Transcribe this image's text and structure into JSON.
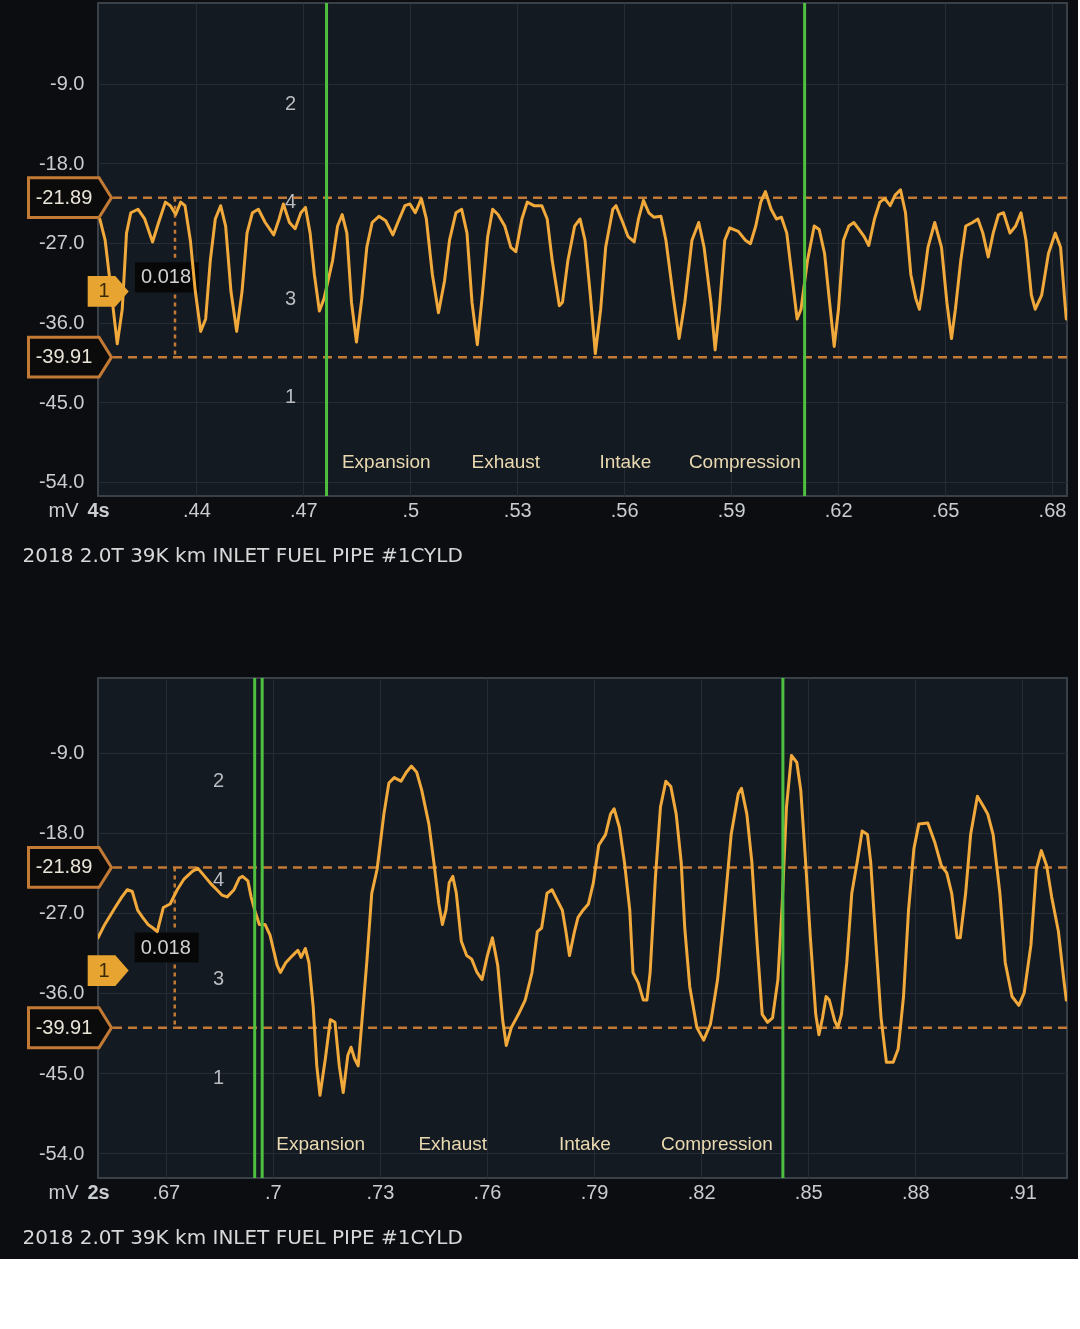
{
  "chart_data": [
    {
      "type": "line",
      "title": "2018 2.0T 39K km INLET FUEL PIPE #1CYLD",
      "xlabel": "4s",
      "ylabel": "mV",
      "xlim": [
        0.4124,
        0.6842
      ],
      "ylim": [
        -55.6,
        0.1
      ],
      "xticks": [
        {
          "value": 0.44,
          "label": ".44"
        },
        {
          "value": 0.47,
          "label": ".47"
        },
        {
          "value": 0.5,
          "label": ".5"
        },
        {
          "value": 0.53,
          "label": ".53"
        },
        {
          "value": 0.56,
          "label": ".56"
        },
        {
          "value": 0.59,
          "label": ".59"
        },
        {
          "value": 0.62,
          "label": ".62"
        },
        {
          "value": 0.65,
          "label": ".65"
        },
        {
          "value": 0.68,
          "label": ".68"
        }
      ],
      "yticks": [
        {
          "value": -9,
          "label": "-9.0"
        },
        {
          "value": -18,
          "label": "-18.0"
        },
        {
          "value": -27,
          "label": "-27.0"
        },
        {
          "value": -36,
          "label": "-36.0"
        },
        {
          "value": -45,
          "label": "-45.0"
        },
        {
          "value": -54,
          "label": "-54.0"
        }
      ],
      "grid": true,
      "ref_lines": [
        {
          "axis": "y",
          "value": -21.89,
          "label": "-21.89",
          "color": "#c27a35",
          "line_style": "dashed"
        },
        {
          "axis": "y",
          "value": -39.91,
          "label": "-39.91",
          "color": "#c27a35",
          "line_style": "dashed"
        },
        {
          "axis": "x",
          "value": 0.4765,
          "color": "#4fbf3f",
          "line_style": "solid"
        },
        {
          "axis": "x",
          "value": 0.6106,
          "color": "#4fbf3f",
          "line_style": "solid"
        }
      ],
      "annotations": [
        {
          "text": "0.018",
          "x": 0.434,
          "y": -39.91
        },
        "1",
        "2",
        "4",
        "3",
        "1",
        "Expansion",
        "Exhaust",
        "Intake",
        "Compression"
      ],
      "x": [
        0.4129,
        0.4144,
        0.4161,
        0.4178,
        0.4192,
        0.4204,
        0.4216,
        0.4236,
        0.4255,
        0.4277,
        0.4294,
        0.4313,
        0.4327,
        0.4342,
        0.4356,
        0.4368,
        0.4383,
        0.4397,
        0.4412,
        0.4426,
        0.4439,
        0.4453,
        0.4468,
        0.4482,
        0.4497,
        0.4513,
        0.4528,
        0.4542,
        0.4557,
        0.4574,
        0.4593,
        0.4617,
        0.4632,
        0.4644,
        0.4661,
        0.4677,
        0.4693,
        0.4706,
        0.4719,
        0.4731,
        0.4745,
        0.4758,
        0.4782,
        0.4796,
        0.4809,
        0.4822,
        0.4835,
        0.4849,
        0.4864,
        0.4878,
        0.4893,
        0.4912,
        0.4931,
        0.4951,
        0.4965,
        0.4985,
        0.4999,
        0.5014,
        0.5031,
        0.5045,
        0.5062,
        0.5079,
        0.5096,
        0.511,
        0.5128,
        0.5144,
        0.5159,
        0.5173,
        0.5188,
        0.5202,
        0.5217,
        0.5231,
        0.5246,
        0.5265,
        0.5282,
        0.5296,
        0.5313,
        0.5328,
        0.5347,
        0.5369,
        0.5384,
        0.5398,
        0.5418,
        0.5427,
        0.5442,
        0.5461,
        0.5476,
        0.549,
        0.5505,
        0.5519,
        0.5534,
        0.5548,
        0.5568,
        0.5577,
        0.5596,
        0.5611,
        0.5628,
        0.564,
        0.5654,
        0.5669,
        0.5683,
        0.5703,
        0.5717,
        0.5737,
        0.5754,
        0.577,
        0.579,
        0.5809,
        0.5824,
        0.5843,
        0.5855,
        0.5867,
        0.5882,
        0.5896,
        0.592,
        0.594,
        0.5954,
        0.5969,
        0.5983,
        0.5996,
        0.6012,
        0.6027,
        0.6041,
        0.6056,
        0.607,
        0.6085,
        0.6096,
        0.6114,
        0.6133,
        0.6147,
        0.6162,
        0.6176,
        0.6189,
        0.6201,
        0.6215,
        0.623,
        0.6244,
        0.6259,
        0.6273,
        0.6286,
        0.6302,
        0.6317,
        0.6331,
        0.6346,
        0.636,
        0.6375,
        0.6389,
        0.6404,
        0.6418,
        0.6428,
        0.6437,
        0.6452,
        0.6471,
        0.649,
        0.6505,
        0.6518,
        0.6529,
        0.6544,
        0.6558,
        0.6577,
        0.6592,
        0.6606,
        0.6621,
        0.6635,
        0.665,
        0.6664,
        0.6682,
        0.6698,
        0.6713,
        0.6727,
        0.6742,
        0.6753,
        0.6771,
        0.679,
        0.6809,
        0.6824,
        0.6836,
        0.684
      ],
      "series": [
        {
          "color": "#f0a93a",
          "values": [
            -24.3,
            -26.7,
            -32.5,
            -38.4,
            -34.5,
            -25.9,
            -23.6,
            -23.2,
            -24.3,
            -26.9,
            -24.7,
            -22.4,
            -22.8,
            -23.8,
            -22.4,
            -22.8,
            -26.7,
            -32.5,
            -37.0,
            -35.6,
            -29.0,
            -24.3,
            -22.8,
            -25.1,
            -32.5,
            -37.0,
            -32.5,
            -25.9,
            -23.6,
            -23.2,
            -24.7,
            -26.1,
            -24.3,
            -22.6,
            -24.7,
            -25.4,
            -23.6,
            -23.0,
            -25.9,
            -30.6,
            -34.7,
            -33.3,
            -29.0,
            -25.1,
            -23.8,
            -25.9,
            -33.7,
            -38.2,
            -33.3,
            -27.5,
            -24.7,
            -24.0,
            -24.5,
            -26.1,
            -24.7,
            -22.8,
            -22.6,
            -23.6,
            -22.0,
            -24.3,
            -30.6,
            -34.9,
            -31.3,
            -26.7,
            -23.6,
            -23.2,
            -25.9,
            -33.7,
            -38.5,
            -32.9,
            -26.3,
            -23.2,
            -23.8,
            -25.1,
            -27.5,
            -28.0,
            -24.3,
            -22.4,
            -22.8,
            -22.8,
            -24.3,
            -29.0,
            -34.1,
            -33.7,
            -29.0,
            -25.1,
            -24.3,
            -26.7,
            -32.9,
            -39.5,
            -34.5,
            -27.5,
            -23.2,
            -22.8,
            -24.7,
            -26.3,
            -26.9,
            -24.3,
            -22.2,
            -23.6,
            -24.1,
            -24.0,
            -26.7,
            -32.9,
            -37.8,
            -33.7,
            -26.7,
            -24.7,
            -27.5,
            -33.7,
            -39.1,
            -34.5,
            -26.7,
            -25.3,
            -25.7,
            -26.7,
            -27.1,
            -25.1,
            -22.4,
            -21.2,
            -23.2,
            -24.3,
            -24.1,
            -25.9,
            -30.6,
            -35.6,
            -34.5,
            -29.0,
            -25.1,
            -25.5,
            -28.2,
            -33.7,
            -38.7,
            -34.5,
            -26.7,
            -25.1,
            -24.7,
            -25.5,
            -26.3,
            -27.3,
            -24.3,
            -22.4,
            -22.0,
            -22.8,
            -21.6,
            -21.0,
            -23.6,
            -30.6,
            -33.3,
            -34.5,
            -32.1,
            -27.5,
            -24.7,
            -27.5,
            -33.7,
            -37.8,
            -34.5,
            -29.0,
            -25.1,
            -24.7,
            -24.3,
            -25.9,
            -28.6,
            -25.9,
            -23.8,
            -23.6,
            -25.9,
            -25.1,
            -23.6,
            -26.7,
            -32.9,
            -34.5,
            -32.9,
            -28.2,
            -25.9,
            -27.5,
            -33.7,
            -35.6
          ]
        }
      ]
    },
    {
      "type": "line",
      "title": "2018 2.0T 39K km INLET FUEL PIPE #1CYLD",
      "xlabel": "2s",
      "ylabel": "mV",
      "xlim": [
        0.651,
        0.9225
      ],
      "ylim": [
        -56.8,
        -0.6
      ],
      "xticks": [
        {
          "value": 0.67,
          "label": ".67"
        },
        {
          "value": 0.7,
          "label": ".7"
        },
        {
          "value": 0.73,
          "label": ".73"
        },
        {
          "value": 0.76,
          "label": ".76"
        },
        {
          "value": 0.79,
          "label": ".79"
        },
        {
          "value": 0.82,
          "label": ".82"
        },
        {
          "value": 0.85,
          "label": ".85"
        },
        {
          "value": 0.88,
          "label": ".88"
        },
        {
          "value": 0.91,
          "label": ".91"
        }
      ],
      "yticks": [
        {
          "value": -9,
          "label": "-9.0"
        },
        {
          "value": -18,
          "label": "-18.0"
        },
        {
          "value": -27,
          "label": "-27.0"
        },
        {
          "value": -36,
          "label": "-36.0"
        },
        {
          "value": -45,
          "label": "-45.0"
        },
        {
          "value": -54,
          "label": "-54.0"
        }
      ],
      "grid": true,
      "ref_lines": [
        {
          "axis": "y",
          "value": -21.89,
          "label": "-21.89",
          "color": "#c27a35",
          "line_style": "dashed"
        },
        {
          "axis": "y",
          "value": -39.91,
          "label": "-39.91",
          "color": "#c27a35",
          "line_style": "dashed"
        },
        {
          "axis": "x",
          "value": 0.6949,
          "color": "#4fbf3f",
          "line_style": "solid"
        },
        {
          "axis": "x",
          "value": 0.697,
          "color": "#4fbf3f",
          "line_style": "solid"
        },
        {
          "axis": "x",
          "value": 0.8429,
          "color": "#4fbf3f",
          "line_style": "solid"
        }
      ],
      "annotations": [
        {
          "text": "0.018",
          "x": 0.6725,
          "y": -39.91
        },
        "1",
        "2",
        "4",
        "3",
        "1",
        "Expansion",
        "Exhaust",
        "Intake",
        "Compression"
      ],
      "x": [
        0.651,
        0.6529,
        0.6558,
        0.6577,
        0.6592,
        0.6606,
        0.6621,
        0.6635,
        0.665,
        0.6664,
        0.6676,
        0.6693,
        0.6712,
        0.6732,
        0.6751,
        0.6775,
        0.679,
        0.6809,
        0.6828,
        0.6843,
        0.6857,
        0.6872,
        0.6891,
        0.6906,
        0.6915,
        0.693,
        0.6939,
        0.6949,
        0.6962,
        0.6978,
        0.6992,
        0.7012,
        0.7021,
        0.7036,
        0.7055,
        0.707,
        0.7079,
        0.7091,
        0.7101,
        0.7113,
        0.7123,
        0.7132,
        0.7147,
        0.7161,
        0.7174,
        0.7186,
        0.7197,
        0.721,
        0.7219,
        0.7229,
        0.7239,
        0.7248,
        0.7263,
        0.7277,
        0.7292,
        0.7311,
        0.7325,
        0.734,
        0.7359,
        0.7374,
        0.7388,
        0.7403,
        0.7417,
        0.7437,
        0.7451,
        0.7465,
        0.7475,
        0.7485,
        0.7494,
        0.7504,
        0.7514,
        0.7528,
        0.7543,
        0.7557,
        0.7572,
        0.7586,
        0.7601,
        0.7615,
        0.763,
        0.7644,
        0.7654,
        0.7668,
        0.7688,
        0.7707,
        0.7726,
        0.7741,
        0.7753,
        0.7768,
        0.7782,
        0.7797,
        0.7811,
        0.7821,
        0.7831,
        0.7845,
        0.7855,
        0.7869,
        0.7884,
        0.7898,
        0.7913,
        0.7932,
        0.7946,
        0.7956,
        0.7971,
        0.7985,
        0.8,
        0.8009,
        0.8024,
        0.8038,
        0.8048,
        0.8057,
        0.8072,
        0.8086,
        0.8101,
        0.8115,
        0.813,
        0.8144,
        0.8154,
        0.8168,
        0.8188,
        0.8207,
        0.8226,
        0.8246,
        0.8265,
        0.8284,
        0.8304,
        0.8313,
        0.8328,
        0.8342,
        0.8357,
        0.8371,
        0.8386,
        0.84,
        0.8415,
        0.8427,
        0.8439,
        0.8453,
        0.8468,
        0.8479,
        0.8492,
        0.8506,
        0.8521,
        0.853,
        0.854,
        0.855,
        0.8559,
        0.8574,
        0.8583,
        0.8593,
        0.8608,
        0.8622,
        0.8637,
        0.8651,
        0.8666,
        0.8675,
        0.869,
        0.8704,
        0.8719,
        0.8738,
        0.8752,
        0.8767,
        0.8781,
        0.8796,
        0.881,
        0.8835,
        0.8854,
        0.8873,
        0.8888,
        0.8902,
        0.8917,
        0.8926,
        0.8941,
        0.8955,
        0.8974,
        0.8989,
        0.9003,
        0.9018,
        0.9037,
        0.9052,
        0.9071,
        0.909,
        0.9105,
        0.9124,
        0.9139,
        0.9153,
        0.9168,
        0.9182,
        0.9201,
        0.9216,
        0.9223
      ],
      "series": [
        {
          "color": "#f0a93a",
          "values": [
            -29.8,
            -28.3,
            -26.4,
            -25.2,
            -24.4,
            -24.6,
            -26.7,
            -27.5,
            -28.3,
            -28.7,
            -29.1,
            -26.4,
            -26.0,
            -24.4,
            -23.2,
            -22.3,
            -22.0,
            -22.9,
            -23.8,
            -24.4,
            -25.0,
            -25.2,
            -24.4,
            -23.1,
            -22.9,
            -23.4,
            -25.2,
            -26.7,
            -28.3,
            -28.3,
            -29.5,
            -32.9,
            -33.7,
            -32.6,
            -31.8,
            -31.2,
            -32.0,
            -31.0,
            -32.6,
            -37.6,
            -44.2,
            -47.5,
            -43.4,
            -39.0,
            -39.3,
            -44.2,
            -47.2,
            -43.0,
            -42.1,
            -43.4,
            -44.2,
            -39.9,
            -32.6,
            -24.8,
            -22.1,
            -15.9,
            -12.4,
            -11.8,
            -12.2,
            -11.2,
            -10.5,
            -11.2,
            -13.2,
            -17.0,
            -21.3,
            -26.0,
            -28.3,
            -26.7,
            -23.6,
            -22.9,
            -24.8,
            -30.2,
            -31.8,
            -32.2,
            -33.7,
            -34.5,
            -31.8,
            -29.8,
            -32.9,
            -39.1,
            -41.9,
            -39.9,
            -38.4,
            -36.8,
            -33.7,
            -29.1,
            -28.7,
            -24.8,
            -24.4,
            -25.6,
            -26.7,
            -29.1,
            -31.8,
            -29.1,
            -27.5,
            -26.7,
            -26.0,
            -23.6,
            -19.4,
            -18.2,
            -15.9,
            -15.3,
            -17.4,
            -21.3,
            -26.7,
            -33.7,
            -34.9,
            -36.8,
            -36.8,
            -33.7,
            -22.9,
            -15.1,
            -12.2,
            -12.8,
            -15.9,
            -21.3,
            -28.7,
            -35.3,
            -39.9,
            -41.3,
            -39.5,
            -34.5,
            -26.7,
            -18.2,
            -13.6,
            -13.0,
            -15.9,
            -21.3,
            -30.6,
            -38.4,
            -39.3,
            -38.8,
            -34.5,
            -26.0,
            -15.1,
            -9.3,
            -10.1,
            -13.2,
            -20.9,
            -29.8,
            -38.4,
            -40.7,
            -38.8,
            -36.4,
            -36.8,
            -39.1,
            -39.9,
            -38.4,
            -32.6,
            -24.8,
            -21.3,
            -17.8,
            -18.2,
            -21.3,
            -30.6,
            -38.8,
            -43.8,
            -43.8,
            -42.3,
            -36.4,
            -26.7,
            -19.8,
            -17.0,
            -16.9,
            -19.0,
            -21.7,
            -22.5,
            -24.8,
            -29.8,
            -29.8,
            -24.8,
            -18.2,
            -13.9,
            -14.9,
            -15.9,
            -18.2,
            -24.8,
            -32.6,
            -36.4,
            -37.4,
            -36.0,
            -30.6,
            -22.1,
            -20.0,
            -21.7,
            -25.2,
            -29.1,
            -34.5,
            -36.8
          ]
        }
      ]
    }
  ]
}
